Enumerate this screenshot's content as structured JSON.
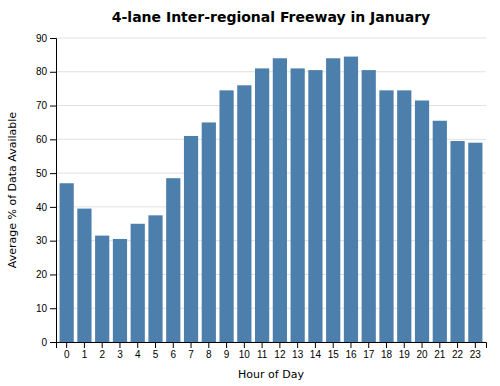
{
  "chart_data": {
    "type": "bar",
    "title": "4-lane Inter-regional Freeway in January",
    "xlabel": "Hour of Day",
    "ylabel": "Average % of Data Available",
    "categories": [
      "0",
      "1",
      "2",
      "3",
      "4",
      "5",
      "6",
      "7",
      "8",
      "9",
      "10",
      "11",
      "12",
      "13",
      "14",
      "15",
      "16",
      "17",
      "18",
      "19",
      "20",
      "21",
      "22",
      "23"
    ],
    "values": [
      47,
      39.5,
      31.5,
      30.5,
      35,
      37.5,
      48.5,
      61,
      65,
      74.5,
      76,
      81,
      84,
      81,
      80.5,
      84,
      84.5,
      80.5,
      74.5,
      74.5,
      71.5,
      65.5,
      59.5,
      59
    ],
    "color": "#4d7fac",
    "ylim": [
      0,
      90
    ],
    "yticks": [
      0,
      10,
      20,
      30,
      40,
      50,
      60,
      70,
      80,
      90
    ],
    "grid": true
  }
}
